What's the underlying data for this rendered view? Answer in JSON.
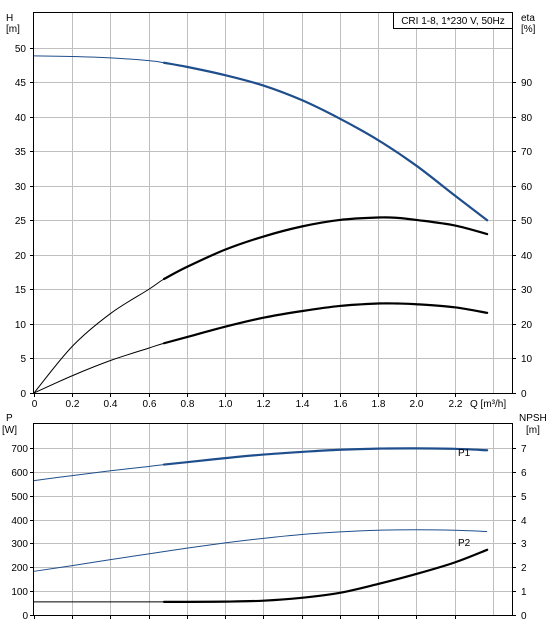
{
  "chart_data": [
    {
      "type": "line",
      "title": "CRI 1-8, 1*230 V, 50Hz",
      "xlabel": "Q [m³/h]",
      "ylabel_left": [
        "H",
        "[m]"
      ],
      "ylabel_right": [
        "eta",
        "[%]"
      ],
      "xlim": [
        0,
        2.5
      ],
      "ylim_left": [
        0,
        55
      ],
      "ylim_right": [
        0,
        110
      ],
      "xticks": [
        "0",
        "0.2",
        "0.4",
        "0.6",
        "0.8",
        "1.0",
        "1.2",
        "1.4",
        "1.6",
        "1.8",
        "2.0",
        "2.2"
      ],
      "yticks_left": [
        "0",
        "5",
        "10",
        "15",
        "20",
        "25",
        "30",
        "35",
        "40",
        "45",
        "50"
      ],
      "yticks_right": [
        "0",
        "10",
        "20",
        "30",
        "40",
        "50",
        "60",
        "70",
        "80",
        "90"
      ],
      "grid": true,
      "series": [
        {
          "axis": "left",
          "color": "#1f4e8c",
          "x": [
            0,
            0.2,
            0.4,
            0.6,
            0.68,
            0.8,
            1.0,
            1.2,
            1.4,
            1.6,
            1.8,
            2.0,
            2.2,
            2.37
          ],
          "y": [
            48.8,
            48.7,
            48.5,
            48.1,
            47.8,
            47.2,
            46.0,
            44.5,
            42.4,
            39.7,
            36.6,
            32.9,
            28.6,
            25.0
          ],
          "bold_from": 0.68
        },
        {
          "axis": "right",
          "color": "#000000",
          "x": [
            0,
            0.2,
            0.4,
            0.6,
            0.68,
            0.8,
            1.0,
            1.2,
            1.4,
            1.6,
            1.8,
            1.9,
            2.0,
            2.2,
            2.37
          ],
          "y": [
            0,
            13.5,
            23.0,
            30.0,
            33.0,
            36.5,
            41.5,
            45.3,
            48.2,
            50.1,
            50.8,
            50.7,
            50.1,
            48.5,
            46.0
          ],
          "bold_from": 0.68
        },
        {
          "axis": "right",
          "color": "#000000",
          "x": [
            0,
            0.2,
            0.4,
            0.6,
            0.68,
            0.8,
            1.0,
            1.2,
            1.4,
            1.6,
            1.8,
            1.9,
            2.0,
            2.2,
            2.37
          ],
          "y": [
            0,
            5.0,
            9.4,
            13.0,
            14.4,
            16.2,
            19.2,
            21.8,
            23.7,
            25.2,
            25.9,
            25.9,
            25.7,
            24.8,
            23.2
          ],
          "bold_from": 0.68
        }
      ]
    },
    {
      "type": "line",
      "xlim": [
        0,
        2.5
      ],
      "ylabel_left": [
        "P",
        "[W]"
      ],
      "ylabel_right": [
        "NPSH",
        "[m]"
      ],
      "ylim_left": [
        0,
        800
      ],
      "ylim_right": [
        0,
        8
      ],
      "yticks_left": [
        "0",
        "100",
        "200",
        "300",
        "400",
        "500",
        "600",
        "700"
      ],
      "yticks_right": [
        "0",
        "1",
        "2",
        "3",
        "4",
        "5",
        "6",
        "7"
      ],
      "grid": true,
      "series": [
        {
          "name": "P1",
          "axis": "left",
          "color": "#1f4e8c",
          "x": [
            0,
            0.2,
            0.4,
            0.6,
            0.68,
            0.8,
            1.0,
            1.2,
            1.4,
            1.6,
            1.8,
            2.0,
            2.2,
            2.37
          ],
          "y": [
            563,
            584,
            604,
            622,
            630,
            640,
            657,
            672,
            683,
            692,
            697,
            698,
            696,
            690
          ],
          "bold_from": 0.68
        },
        {
          "name": "P2",
          "axis": "left",
          "color": "#1f4e8c",
          "x": [
            0,
            0.2,
            0.4,
            0.6,
            0.8,
            1.0,
            1.2,
            1.4,
            1.6,
            1.8,
            2.0,
            2.2,
            2.37
          ],
          "y": [
            183,
            207,
            232,
            256,
            280,
            302,
            321,
            337,
            348,
            355,
            357,
            355,
            350
          ],
          "bold_from": 99
        },
        {
          "axis": "right",
          "color": "#000000",
          "x": [
            0,
            0.2,
            0.4,
            0.6,
            0.68,
            0.8,
            1.0,
            1.2,
            1.4,
            1.6,
            1.8,
            2.0,
            2.2,
            2.37
          ],
          "y": [
            0.55,
            0.55,
            0.55,
            0.55,
            0.55,
            0.55,
            0.56,
            0.6,
            0.72,
            0.93,
            1.3,
            1.72,
            2.2,
            2.73
          ],
          "bold_from": 0.68
        }
      ]
    }
  ]
}
